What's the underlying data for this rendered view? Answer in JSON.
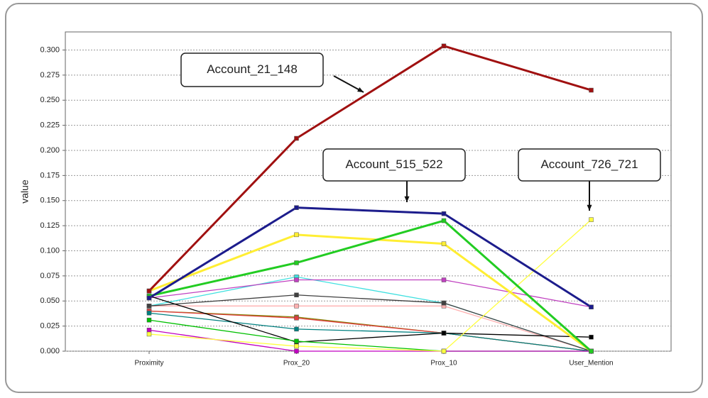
{
  "chart_data": {
    "type": "line",
    "y_label": "value",
    "categories": [
      "Proximity",
      "Prox_20",
      "Prox_10",
      "User_Mention"
    ],
    "ylim": [
      0,
      0.318
    ],
    "yticks": [
      {
        "value": 0,
        "label": "0.000"
      },
      {
        "value": 0.025,
        "label": "0.025"
      },
      {
        "value": 0.05,
        "label": "0.050"
      },
      {
        "value": 0.075,
        "label": "0.075"
      },
      {
        "value": 0.1,
        "label": "0.100"
      },
      {
        "value": 0.125,
        "label": "0.125"
      },
      {
        "value": 0.15,
        "label": "0.150"
      },
      {
        "value": 0.175,
        "label": "0.175"
      },
      {
        "value": 0.2,
        "label": "0.200"
      },
      {
        "value": 0.225,
        "label": "0.225"
      },
      {
        "value": 0.25,
        "label": "0.250"
      },
      {
        "value": 0.275,
        "label": "0.275"
      },
      {
        "value": 0.3,
        "label": "0.300"
      }
    ],
    "grid": true,
    "annotations": [
      "Account_21_148",
      "Account_515_522",
      "Account_726_721"
    ],
    "series": [
      {
        "color": "#ffb0b0",
        "values": [
          0.045,
          0.045,
          0.045,
          0.0
        ]
      },
      {
        "color": "#40e0e0",
        "values": [
          0.045,
          0.074,
          0.048,
          0.0
        ]
      },
      {
        "color": "#404040",
        "values": [
          0.045,
          0.056,
          0.048,
          0.0
        ]
      },
      {
        "color": "#c040c0",
        "values": [
          0.053,
          0.071,
          0.071,
          0.044
        ]
      },
      {
        "color": "#808000",
        "values": [
          0.04,
          0.034,
          0.018,
          0.0
        ]
      },
      {
        "color": "#e04040",
        "values": [
          0.04,
          0.033,
          0.018,
          0.0
        ]
      },
      {
        "color": "#008080",
        "values": [
          0.038,
          0.022,
          0.018,
          0.0
        ]
      },
      {
        "color": "#000000",
        "values": [
          0.055,
          0.009,
          0.018,
          0.014
        ]
      },
      {
        "color": "#00c000",
        "values": [
          0.031,
          0.01,
          0.0,
          0.0
        ]
      },
      {
        "color": "#c000c0",
        "values": [
          0.021,
          0.0,
          0.0,
          0.0
        ]
      },
      {
        "color": "#ffff40",
        "values": [
          0.017,
          0.005,
          0.0,
          0.131
        ]
      },
      {
        "color": "#ffee33",
        "width": 3,
        "values": [
          0.06,
          0.116,
          0.107,
          0.0
        ]
      },
      {
        "color": "#22cc22",
        "width": 3,
        "values": [
          0.055,
          0.088,
          0.13,
          0.0
        ]
      },
      {
        "color": "#1c1c8c",
        "width": 3,
        "values": [
          0.053,
          0.143,
          0.137,
          0.044
        ]
      },
      {
        "color": "#a01010",
        "width": 3,
        "values": [
          0.06,
          0.212,
          0.304,
          0.26
        ]
      }
    ]
  }
}
